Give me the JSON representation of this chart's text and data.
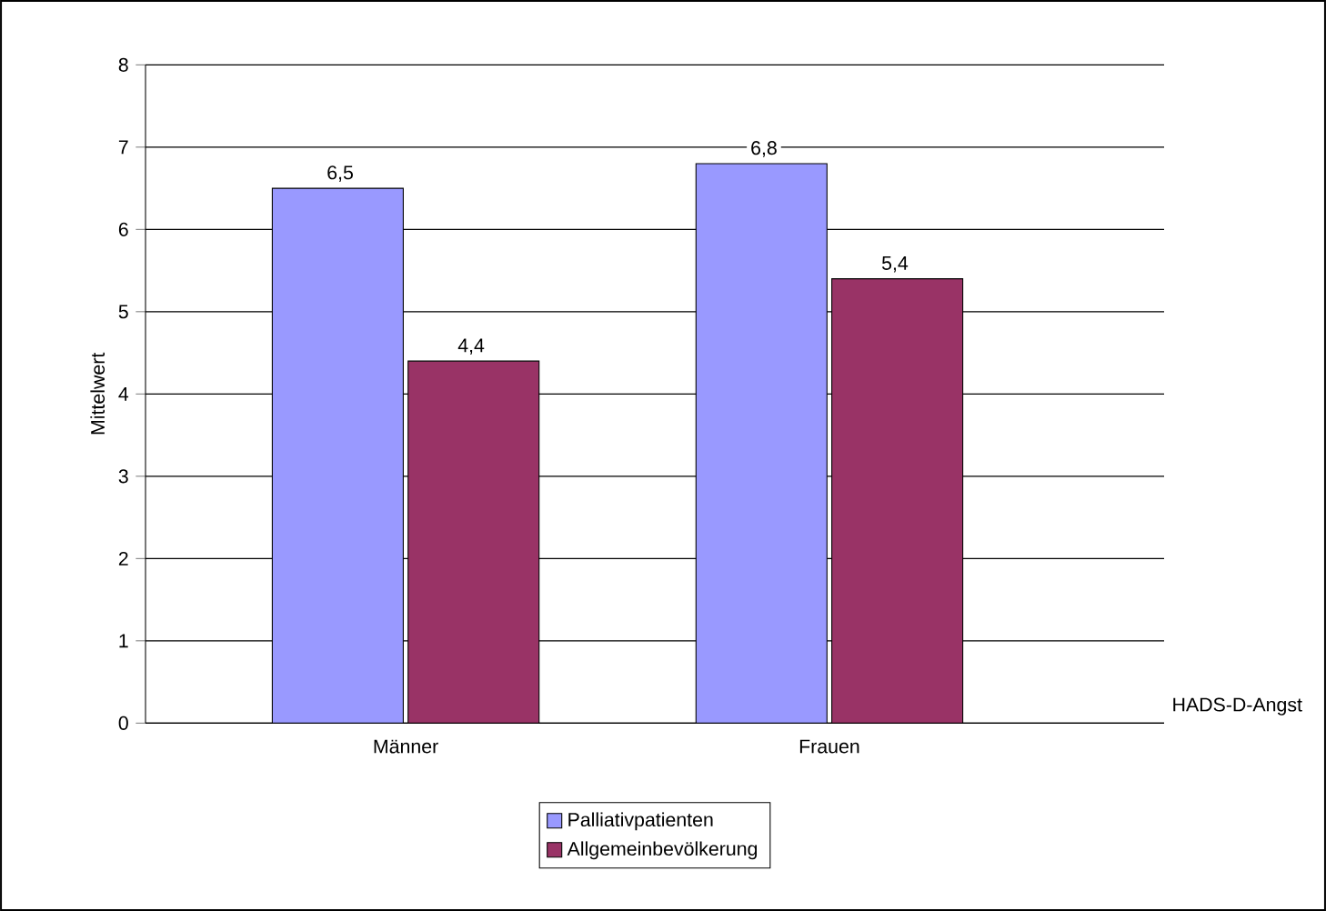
{
  "chart_data": {
    "type": "bar",
    "ylabel": "Mittelwert",
    "xlabel": "HADS-D-Angst",
    "categories": [
      "Männer",
      "Frauen"
    ],
    "series": [
      {
        "name": "Palliativpatienten",
        "color": "#9999ff",
        "values": [
          6.5,
          6.8
        ],
        "value_labels": [
          "6,5",
          "6,8"
        ]
      },
      {
        "name": "Allgemeinbevölkerung",
        "color": "#993366",
        "values": [
          4.4,
          5.4
        ],
        "value_labels": [
          "4,4",
          "5,4"
        ]
      }
    ],
    "ylim": [
      0,
      8
    ],
    "yticks": [
      0,
      1,
      2,
      3,
      4,
      5,
      6,
      7,
      8
    ],
    "grid": "y",
    "legend": "bottom"
  }
}
